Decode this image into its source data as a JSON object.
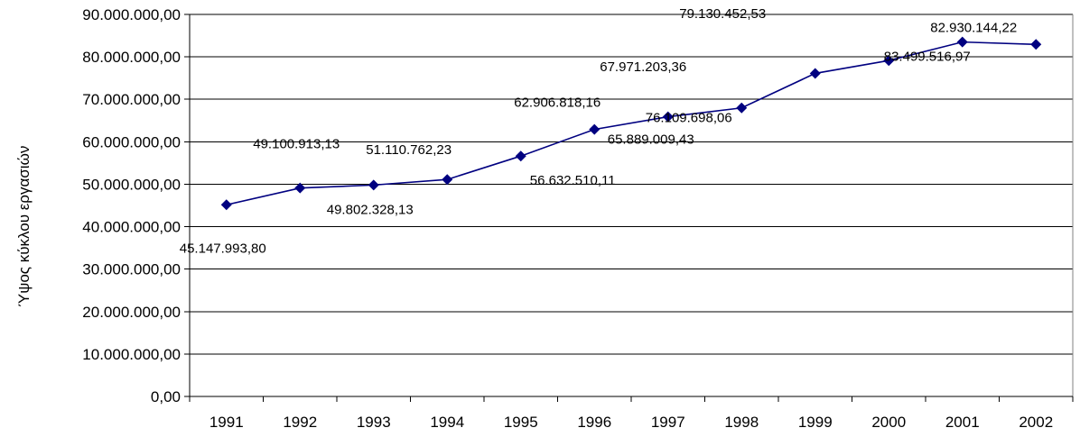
{
  "chart_data": {
    "type": "line",
    "title": "",
    "xlabel": "",
    "ylabel": "Ύψος κύκλου εργασιών",
    "ylim": [
      0,
      90000000
    ],
    "y_step": 10000000,
    "grid": true,
    "legend": "none",
    "categories": [
      "1991",
      "1992",
      "1993",
      "1994",
      "1995",
      "1996",
      "1997",
      "1998",
      "1999",
      "2000",
      "2001",
      "2002"
    ],
    "y_tick_labels": [
      "0,00",
      "10.000.000,00",
      "20.000.000,00",
      "30.000.000,00",
      "40.000.000,00",
      "50.000.000,00",
      "60.000.000,00",
      "70.000.000,00",
      "80.000.000,00",
      "90.000.000,00"
    ],
    "series": [
      {
        "values": [
          45147993.8,
          49100913.13,
          49802328.13,
          51110762.23,
          56632510.11,
          62906818.16,
          65889009.43,
          67971203.36,
          76109698.06,
          79130452.53,
          83499516.97,
          82930144.22
        ],
        "labels": [
          "45.147.993,80",
          "49.100.913,13",
          "49.802.328,13",
          "51.110.762,23",
          "56.632.510,11",
          "62.906.818,16",
          "65.889.009,43",
          "67.971.203,36",
          "76.109.698,06",
          "79.130.452,53",
          "83.499.516,97",
          "82.930.144,22"
        ],
        "color": "#000080"
      }
    ]
  }
}
